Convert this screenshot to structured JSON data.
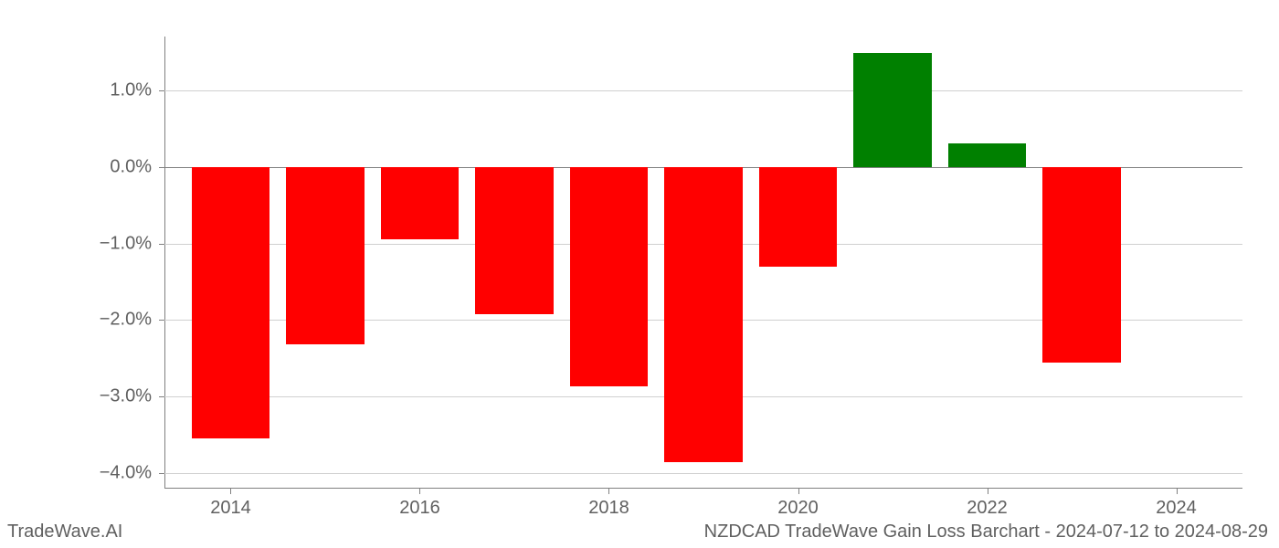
{
  "chart": {
    "type": "bar",
    "background_color": "#ffffff",
    "grid_color": "#d0d0d0",
    "spine_color": "#808080",
    "zero_line_color": "#808080",
    "tick_font_size": 20,
    "tick_color": "#606060",
    "ylim": [
      -4.2,
      1.7
    ],
    "yticks": [
      -4.0,
      -3.0,
      -2.0,
      -1.0,
      0.0,
      1.0
    ],
    "ytick_labels": [
      "−4.0%",
      "−3.0%",
      "−2.0%",
      "−1.0%",
      "0.0%",
      "1.0%"
    ],
    "x_years": [
      2014,
      2015,
      2016,
      2017,
      2018,
      2019,
      2020,
      2021,
      2022,
      2023
    ],
    "xticks": [
      2014,
      2016,
      2018,
      2020,
      2022,
      2024
    ],
    "xtick_labels": [
      "2014",
      "2016",
      "2018",
      "2020",
      "2022",
      "2024"
    ],
    "xlim": [
      2013.3,
      2024.7
    ],
    "values": [
      -3.55,
      -2.32,
      -0.95,
      -1.92,
      -2.87,
      -3.85,
      -1.3,
      1.48,
      0.3,
      -2.55
    ],
    "bar_colors": [
      "#ff0000",
      "#ff0000",
      "#ff0000",
      "#ff0000",
      "#ff0000",
      "#ff0000",
      "#ff0000",
      "#008000",
      "#008000",
      "#ff0000"
    ],
    "bar_width": 0.83,
    "positive_color": "#008000",
    "negative_color": "#ff0000"
  },
  "footer": {
    "left": "TradeWave.AI",
    "right": "NZDCAD TradeWave Gain Loss Barchart - 2024-07-12 to 2024-08-29",
    "font_size": 20,
    "color": "#606060"
  }
}
